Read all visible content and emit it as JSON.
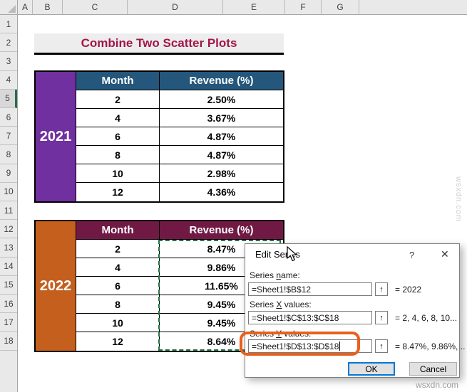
{
  "grid": {
    "columns": [
      "A",
      "B",
      "C",
      "D",
      "E",
      "F",
      "G"
    ],
    "rows": [
      "1",
      "2",
      "3",
      "4",
      "5",
      "6",
      "7",
      "8",
      "9",
      "10",
      "11",
      "12",
      "13",
      "14",
      "15",
      "16",
      "17",
      "18"
    ],
    "active_row": "5"
  },
  "title": {
    "text": "Combine Two Scatter Plots"
  },
  "tables": [
    {
      "year": "2021",
      "year_color": "#7030A0",
      "header_color": "#24577B",
      "headers": [
        "Month",
        "Revenue (%)"
      ],
      "rows": [
        [
          "2",
          "2.50%"
        ],
        [
          "4",
          "3.67%"
        ],
        [
          "6",
          "4.87%"
        ],
        [
          "8",
          "4.87%"
        ],
        [
          "10",
          "2.98%"
        ],
        [
          "12",
          "4.36%"
        ]
      ]
    },
    {
      "year": "2022",
      "year_color": "#C55F1E",
      "header_color": "#701945",
      "headers": [
        "Month",
        "Revenue (%)"
      ],
      "rows": [
        [
          "2",
          "8.47%"
        ],
        [
          "4",
          "9.86%"
        ],
        [
          "6",
          "11.65%"
        ],
        [
          "8",
          "9.45%"
        ],
        [
          "10",
          "9.45%"
        ],
        [
          "12",
          "8.64%"
        ]
      ]
    }
  ],
  "dialog": {
    "title": "Edit Series",
    "help_label": "?",
    "close_label": "✕",
    "fields": [
      {
        "label_pre": "Series ",
        "label_key": "n",
        "label_post": "ame:",
        "value": "=Sheet1!$B$12",
        "result": "= 2022"
      },
      {
        "label_pre": "Series ",
        "label_key": "X",
        "label_post": " values:",
        "value": "=Sheet1!$C$13:$C$18",
        "result": "= 2, 4, 6, 8, 10..."
      },
      {
        "label_pre": "Series ",
        "label_key": "Y",
        "label_post": " values:",
        "value": "=Sheet1!$D$13:$D$18",
        "result": "= 8.47%, 9.86%, .."
      }
    ],
    "range_button_icon": "↑",
    "ok_label": "OK",
    "cancel_label": "Cancel"
  },
  "watermarks": {
    "bottom": "wsxdn.com",
    "side": "wsxdn.com"
  }
}
